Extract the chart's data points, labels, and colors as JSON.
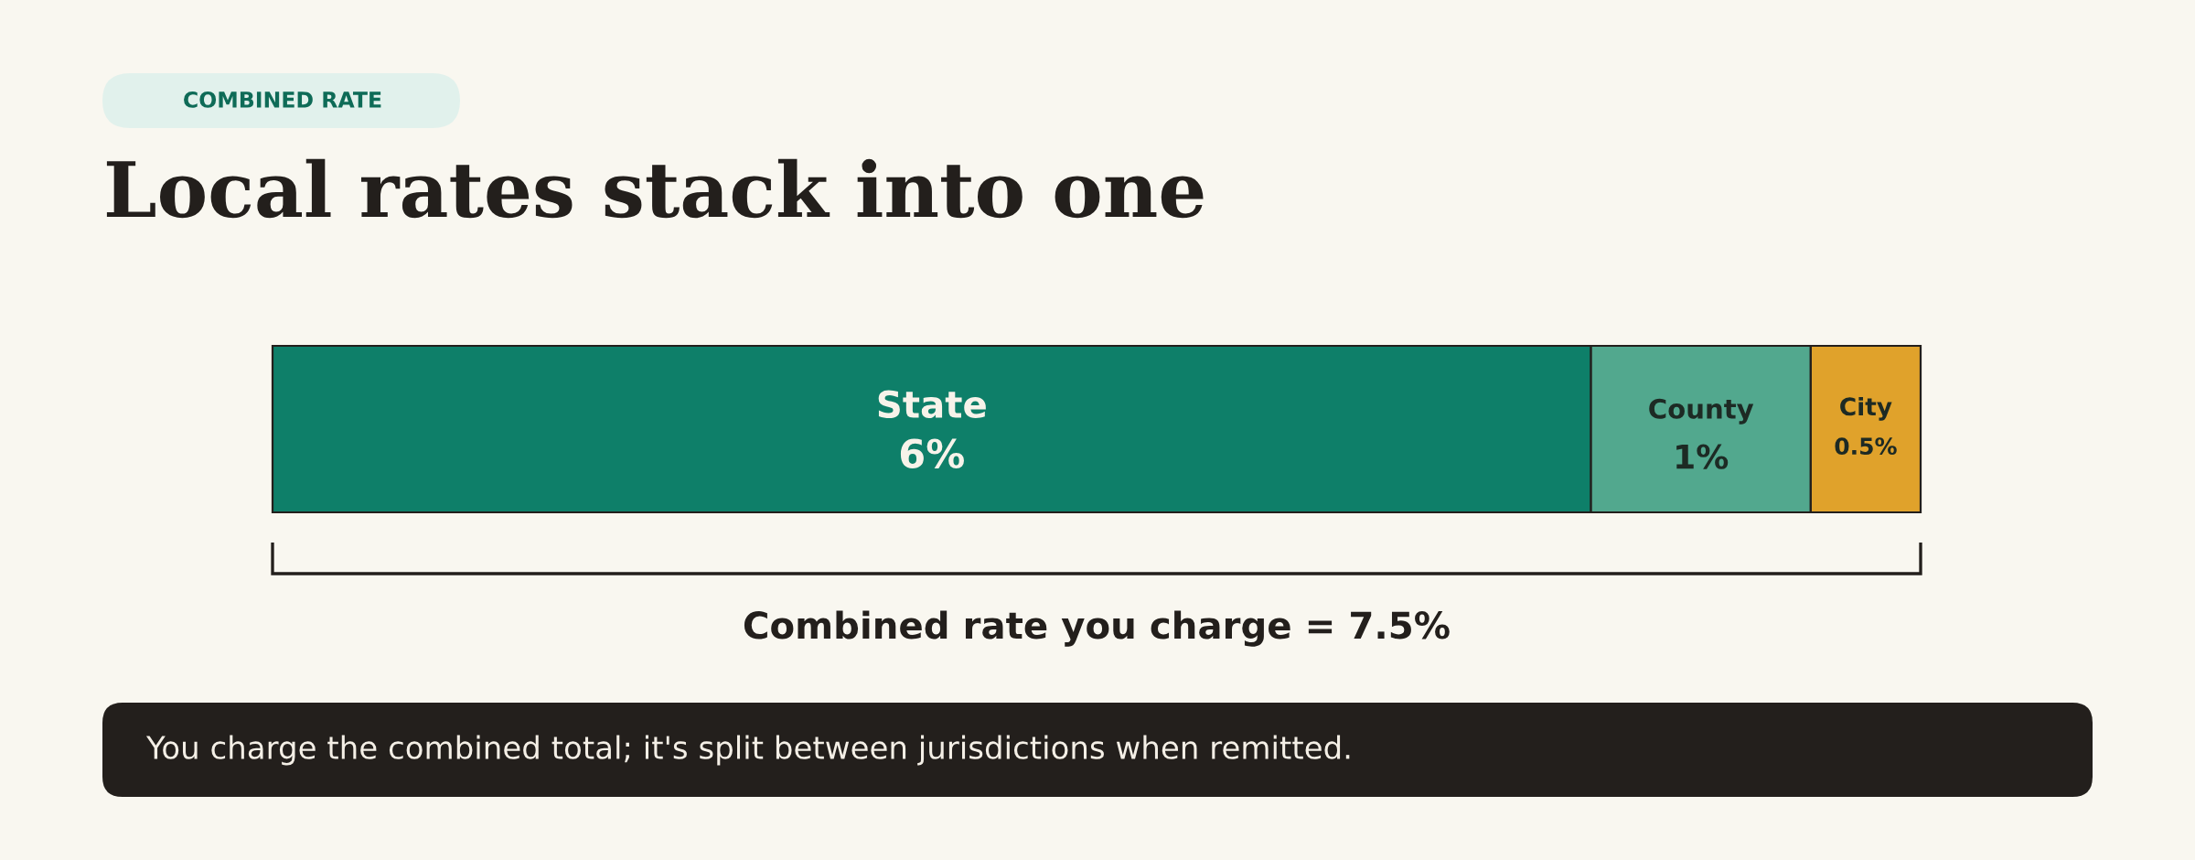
{
  "chart_data": {
    "type": "bar",
    "orientation": "horizontal",
    "stacked": true,
    "title": "Local rates stack into one",
    "categories": [
      null
    ],
    "series": [
      {
        "name": "State",
        "color": "#0e7f69",
        "values": [
          6
        ],
        "value_labels": [
          "6%"
        ]
      },
      {
        "name": "County",
        "color": "#52a88e",
        "values": [
          1
        ],
        "value_labels": [
          "1%"
        ]
      },
      {
        "name": "City",
        "color": "#e0a22b",
        "values": [
          0.5
        ],
        "value_labels": [
          "0.5%"
        ]
      }
    ],
    "tick_labels": false,
    "annotations": [
      "COMBINED RATE",
      "Combined rate you charge = 7.5%",
      "You charge the combined total; it's split between jurisdictions when remitted."
    ]
  }
}
